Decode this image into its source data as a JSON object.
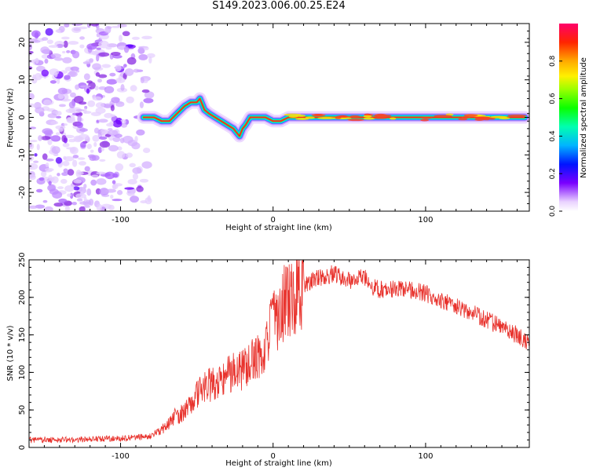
{
  "title": "S149.2023.006.00.25.E24",
  "colors": {
    "snr_line": "#e8322c",
    "axes": "#000000"
  },
  "chart_data": [
    {
      "type": "heatmap",
      "title": "S149.2023.006.00.25.E24",
      "xlabel": "Height of straight line (km)",
      "ylabel": "Frequency (Hz)",
      "xlim": [
        -160,
        168
      ],
      "ylim": [
        -25,
        25
      ],
      "xticks": [
        -100,
        0,
        100
      ],
      "yticks": [
        -20,
        -10,
        0,
        10,
        20
      ],
      "xtick_labels": [
        "-100",
        "0",
        "100"
      ],
      "ytick_labels": [
        "-20",
        "-10",
        "0",
        "10",
        "20"
      ],
      "grid": false,
      "colorbar": {
        "label": "Normalized spectral amplitude",
        "range": [
          0,
          1
        ],
        "ticks": [
          0.0,
          0.2,
          0.4,
          0.6,
          0.8
        ],
        "tick_labels": [
          "0.0",
          "0.2",
          "0.4",
          "0.6",
          "0.8"
        ]
      },
      "ridge": {
        "x": [
          -85,
          -78,
          -73,
          -68,
          -63,
          -58,
          -54,
          -50,
          -48,
          -45,
          -42,
          -38,
          -34,
          -30,
          -26,
          -24,
          -22,
          -20,
          -18,
          -15,
          -10,
          -5,
          0,
          5,
          10,
          20,
          40,
          60,
          80,
          100,
          120,
          140,
          165
        ],
        "y": [
          0,
          0,
          -1,
          -1,
          1,
          3,
          4,
          4,
          5,
          2,
          1,
          0,
          -1,
          -2,
          -3,
          -4,
          -5,
          -3,
          -2,
          0,
          0,
          0,
          -1,
          -1,
          0,
          0,
          0,
          0,
          0,
          0,
          0,
          0,
          0
        ]
      }
    },
    {
      "type": "line",
      "xlabel": "Height of straight line (km)",
      "ylabel": "SNR (10 * v/v)",
      "xlim": [
        -160,
        168
      ],
      "ylim": [
        0,
        250
      ],
      "xticks": [
        -100,
        0,
        100
      ],
      "yticks": [
        0,
        50,
        100,
        150,
        200,
        250
      ],
      "xtick_labels": [
        "-100",
        "0",
        "100"
      ],
      "ytick_labels": [
        "0",
        "50",
        "100",
        "150",
        "200",
        "250"
      ],
      "grid": false,
      "series": [
        {
          "x": [
            -160,
            -140,
            -120,
            -100,
            -80,
            -75,
            -70,
            -65,
            -60,
            -55,
            -50,
            -45,
            -40,
            -35,
            -30,
            -25,
            -20,
            -15,
            -10,
            -5,
            0,
            5,
            10,
            15,
            20,
            25,
            30,
            35,
            40,
            45,
            50,
            55,
            60,
            65,
            70,
            80,
            90,
            100,
            110,
            120,
            130,
            140,
            150,
            160,
            168
          ],
          "values": [
            10,
            10,
            11,
            12,
            15,
            22,
            28,
            40,
            45,
            55,
            70,
            80,
            85,
            90,
            95,
            100,
            105,
            110,
            120,
            140,
            165,
            185,
            200,
            210,
            215,
            222,
            225,
            228,
            232,
            225,
            222,
            225,
            228,
            215,
            210,
            212,
            210,
            205,
            195,
            190,
            180,
            170,
            160,
            150,
            140
          ]
        }
      ]
    }
  ]
}
